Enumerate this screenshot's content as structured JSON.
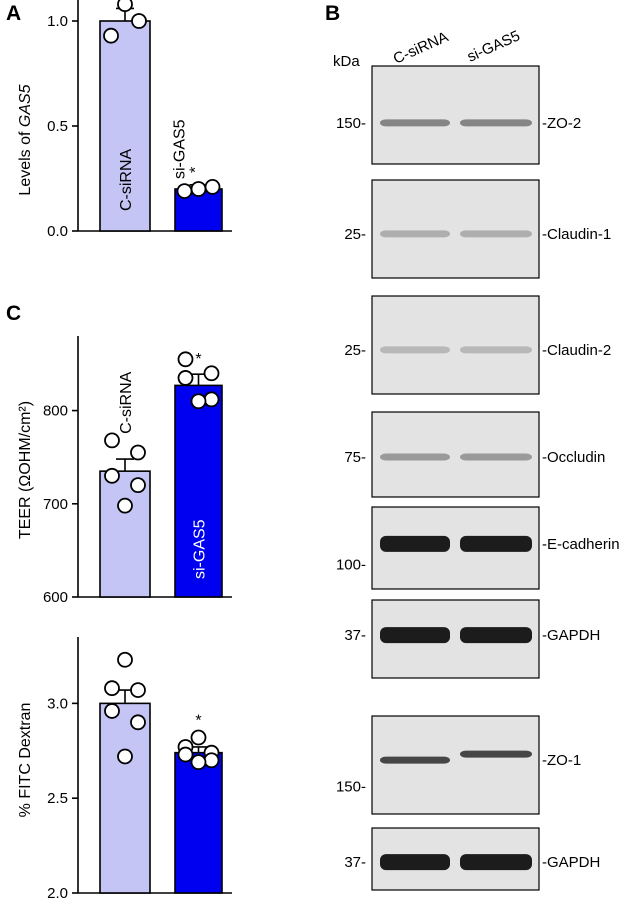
{
  "panels": {
    "a": "A",
    "b": "B",
    "c": "C"
  },
  "star": "*",
  "chart_data": [
    {
      "type": "bar",
      "panel": "A",
      "ylabel_prefix": "Levels of ",
      "ylabel_italic": "GAS5",
      "categories": [
        "C-siRNA",
        "si-GAS5"
      ],
      "values": [
        1.0,
        0.2
      ],
      "errors": [
        0.06,
        0.02
      ],
      "points": [
        [
          0.93,
          1.08,
          1.0
        ],
        [
          0.19,
          0.2,
          0.21
        ]
      ],
      "ylim": [
        0.0,
        1.1
      ],
      "yticks": [
        "0.0",
        "0.5",
        "1.0"
      ],
      "significant": [
        false,
        true
      ]
    },
    {
      "type": "bar",
      "panel": "C",
      "ylabel": "TEER (ΩOHM/cm²)",
      "categories": [
        "C-siRNA",
        "si-GAS5"
      ],
      "values": [
        735,
        827
      ],
      "errors": [
        13,
        12
      ],
      "points": [
        [
          768,
          755,
          730,
          720,
          698
        ],
        [
          855,
          840,
          835,
          812,
          810
        ]
      ],
      "ylim": [
        600,
        880
      ],
      "yticks": [
        "600",
        "700",
        "800"
      ],
      "significant": [
        false,
        true
      ]
    },
    {
      "type": "bar",
      "panel": "C",
      "ylabel": "% FITC Dextran",
      "categories": [
        "C-siRNA",
        "si-GAS5"
      ],
      "values": [
        3.0,
        2.74
      ],
      "errors": [
        0.07,
        0.03
      ],
      "points": [
        [
          3.23,
          3.08,
          3.07,
          2.96,
          2.9,
          2.72
        ],
        [
          2.82,
          2.77,
          2.74,
          2.73,
          2.7,
          2.69
        ]
      ],
      "ylim": [
        2.0,
        3.35
      ],
      "yticks": [
        "2.0",
        "2.5",
        "3.0"
      ],
      "significant": [
        false,
        true
      ]
    }
  ],
  "western_blot": {
    "unit": "kDa",
    "lanes": [
      "C-siRNA",
      "si-GAS5"
    ],
    "blots": [
      {
        "protein": "ZO-2",
        "marker": "150"
      },
      {
        "protein": "Claudin-1",
        "marker": "25"
      },
      {
        "protein": "Claudin-2",
        "marker": "25"
      },
      {
        "protein": "Occludin",
        "marker": "75"
      },
      {
        "protein": "E-cadherin",
        "marker": "100"
      },
      {
        "protein": "GAPDH",
        "marker": "37"
      },
      {
        "protein": "ZO-1",
        "marker": "150"
      },
      {
        "protein": "GAPDH",
        "marker": "37"
      }
    ]
  }
}
